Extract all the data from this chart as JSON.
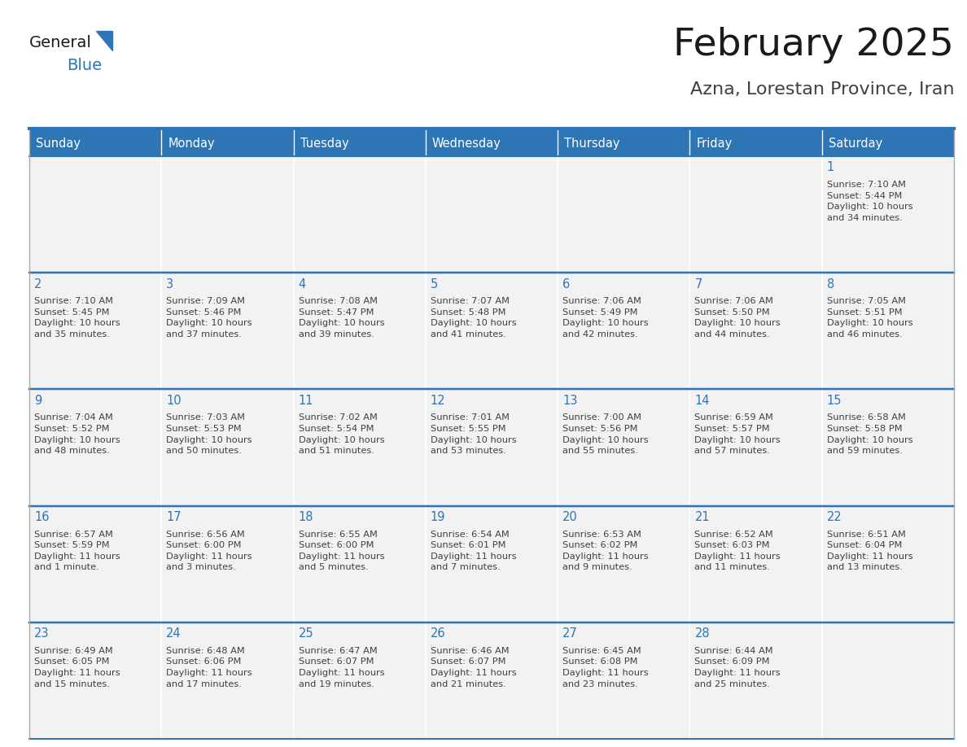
{
  "title": "February 2025",
  "subtitle": "Azna, Lorestan Province, Iran",
  "days_of_week": [
    "Sunday",
    "Monday",
    "Tuesday",
    "Wednesday",
    "Thursday",
    "Friday",
    "Saturday"
  ],
  "header_bg": "#2E75B6",
  "header_text": "#FFFFFF",
  "cell_bg_light": "#F2F2F2",
  "cell_bg_white": "#FFFFFF",
  "cell_border_color": "#AAAAAA",
  "header_border": "#2E75B6",
  "day_num_color": "#2E75B6",
  "info_text_color": "#404040",
  "title_color": "#1a1a1a",
  "subtitle_color": "#404040",
  "logo_general_color": "#1a1a1a",
  "logo_blue_color": "#2E75B6",
  "logo_triangle_color": "#2E75B6",
  "calendar_data": [
    [
      null,
      null,
      null,
      null,
      null,
      null,
      {
        "day": "1",
        "sunrise": "7:10 AM",
        "sunset": "5:44 PM",
        "daylight": "10 hours\nand 34 minutes."
      }
    ],
    [
      {
        "day": "2",
        "sunrise": "7:10 AM",
        "sunset": "5:45 PM",
        "daylight": "10 hours\nand 35 minutes."
      },
      {
        "day": "3",
        "sunrise": "7:09 AM",
        "sunset": "5:46 PM",
        "daylight": "10 hours\nand 37 minutes."
      },
      {
        "day": "4",
        "sunrise": "7:08 AM",
        "sunset": "5:47 PM",
        "daylight": "10 hours\nand 39 minutes."
      },
      {
        "day": "5",
        "sunrise": "7:07 AM",
        "sunset": "5:48 PM",
        "daylight": "10 hours\nand 41 minutes."
      },
      {
        "day": "6",
        "sunrise": "7:06 AM",
        "sunset": "5:49 PM",
        "daylight": "10 hours\nand 42 minutes."
      },
      {
        "day": "7",
        "sunrise": "7:06 AM",
        "sunset": "5:50 PM",
        "daylight": "10 hours\nand 44 minutes."
      },
      {
        "day": "8",
        "sunrise": "7:05 AM",
        "sunset": "5:51 PM",
        "daylight": "10 hours\nand 46 minutes."
      }
    ],
    [
      {
        "day": "9",
        "sunrise": "7:04 AM",
        "sunset": "5:52 PM",
        "daylight": "10 hours\nand 48 minutes."
      },
      {
        "day": "10",
        "sunrise": "7:03 AM",
        "sunset": "5:53 PM",
        "daylight": "10 hours\nand 50 minutes."
      },
      {
        "day": "11",
        "sunrise": "7:02 AM",
        "sunset": "5:54 PM",
        "daylight": "10 hours\nand 51 minutes."
      },
      {
        "day": "12",
        "sunrise": "7:01 AM",
        "sunset": "5:55 PM",
        "daylight": "10 hours\nand 53 minutes."
      },
      {
        "day": "13",
        "sunrise": "7:00 AM",
        "sunset": "5:56 PM",
        "daylight": "10 hours\nand 55 minutes."
      },
      {
        "day": "14",
        "sunrise": "6:59 AM",
        "sunset": "5:57 PM",
        "daylight": "10 hours\nand 57 minutes."
      },
      {
        "day": "15",
        "sunrise": "6:58 AM",
        "sunset": "5:58 PM",
        "daylight": "10 hours\nand 59 minutes."
      }
    ],
    [
      {
        "day": "16",
        "sunrise": "6:57 AM",
        "sunset": "5:59 PM",
        "daylight": "11 hours\nand 1 minute."
      },
      {
        "day": "17",
        "sunrise": "6:56 AM",
        "sunset": "6:00 PM",
        "daylight": "11 hours\nand 3 minutes."
      },
      {
        "day": "18",
        "sunrise": "6:55 AM",
        "sunset": "6:00 PM",
        "daylight": "11 hours\nand 5 minutes."
      },
      {
        "day": "19",
        "sunrise": "6:54 AM",
        "sunset": "6:01 PM",
        "daylight": "11 hours\nand 7 minutes."
      },
      {
        "day": "20",
        "sunrise": "6:53 AM",
        "sunset": "6:02 PM",
        "daylight": "11 hours\nand 9 minutes."
      },
      {
        "day": "21",
        "sunrise": "6:52 AM",
        "sunset": "6:03 PM",
        "daylight": "11 hours\nand 11 minutes."
      },
      {
        "day": "22",
        "sunrise": "6:51 AM",
        "sunset": "6:04 PM",
        "daylight": "11 hours\nand 13 minutes."
      }
    ],
    [
      {
        "day": "23",
        "sunrise": "6:49 AM",
        "sunset": "6:05 PM",
        "daylight": "11 hours\nand 15 minutes."
      },
      {
        "day": "24",
        "sunrise": "6:48 AM",
        "sunset": "6:06 PM",
        "daylight": "11 hours\nand 17 minutes."
      },
      {
        "day": "25",
        "sunrise": "6:47 AM",
        "sunset": "6:07 PM",
        "daylight": "11 hours\nand 19 minutes."
      },
      {
        "day": "26",
        "sunrise": "6:46 AM",
        "sunset": "6:07 PM",
        "daylight": "11 hours\nand 21 minutes."
      },
      {
        "day": "27",
        "sunrise": "6:45 AM",
        "sunset": "6:08 PM",
        "daylight": "11 hours\nand 23 minutes."
      },
      {
        "day": "28",
        "sunrise": "6:44 AM",
        "sunset": "6:09 PM",
        "daylight": "11 hours\nand 25 minutes."
      },
      null
    ]
  ]
}
